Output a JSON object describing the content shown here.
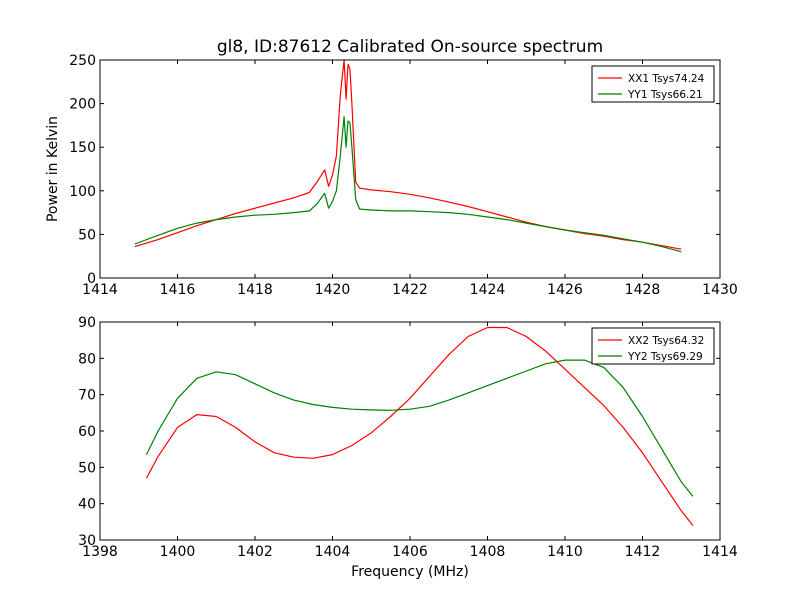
{
  "chart_data": [
    {
      "type": "line",
      "title": "gl8, ID:87612 Calibrated On-source spectrum",
      "xlabel": "",
      "ylabel": "Power in Kelvin",
      "xlim": [
        1414,
        1430
      ],
      "ylim": [
        0,
        250
      ],
      "xticks": [
        "1414",
        "1416",
        "1418",
        "1420",
        "1422",
        "1424",
        "1426",
        "1428",
        "1430"
      ],
      "yticks": [
        "0",
        "50",
        "100",
        "150",
        "200",
        "250"
      ],
      "legend": "top-right",
      "grid": false,
      "series": [
        {
          "name": "XX1 Tsys74.24",
          "color": "#ff0000",
          "x": [
            1414.9,
            1415.5,
            1416.0,
            1416.5,
            1417.0,
            1417.5,
            1418.0,
            1418.5,
            1419.0,
            1419.4,
            1419.6,
            1419.8,
            1419.9,
            1420.0,
            1420.1,
            1420.2,
            1420.3,
            1420.35,
            1420.4,
            1420.45,
            1420.5,
            1420.6,
            1420.7,
            1421.0,
            1421.5,
            1422.0,
            1422.5,
            1423.0,
            1423.5,
            1424.0,
            1424.5,
            1425.0,
            1425.5,
            1426.0,
            1426.5,
            1427.0,
            1427.5,
            1428.0,
            1428.5,
            1429.0
          ],
          "y": [
            36,
            44,
            52,
            60,
            67,
            74,
            80,
            86,
            92,
            98,
            110,
            124,
            105,
            118,
            140,
            210,
            250,
            205,
            245,
            240,
            200,
            110,
            103,
            101,
            99,
            96,
            92,
            87,
            82,
            76,
            70,
            64,
            59,
            55,
            51,
            48,
            44,
            41,
            37,
            33
          ]
        },
        {
          "name": "YY1 Tsys66.21",
          "color": "#008000",
          "x": [
            1414.9,
            1415.5,
            1416.0,
            1416.5,
            1417.0,
            1417.5,
            1418.0,
            1418.5,
            1419.0,
            1419.4,
            1419.6,
            1419.8,
            1419.9,
            1420.0,
            1420.1,
            1420.2,
            1420.3,
            1420.35,
            1420.4,
            1420.45,
            1420.5,
            1420.6,
            1420.7,
            1421.0,
            1421.5,
            1422.0,
            1422.5,
            1423.0,
            1423.5,
            1424.0,
            1424.5,
            1425.0,
            1425.5,
            1426.0,
            1426.5,
            1427.0,
            1427.5,
            1428.0,
            1428.5,
            1429.0
          ],
          "y": [
            39,
            49,
            57,
            63,
            67,
            70,
            72,
            73,
            75,
            77,
            85,
            97,
            80,
            88,
            100,
            140,
            185,
            150,
            180,
            178,
            150,
            90,
            79,
            78,
            77,
            77,
            76,
            75,
            73,
            70,
            67,
            63,
            59,
            55,
            52,
            49,
            45,
            41,
            36,
            30
          ]
        }
      ]
    },
    {
      "type": "line",
      "title": "",
      "xlabel": "Frequency (MHz)",
      "ylabel": "",
      "xlim": [
        1398,
        1414
      ],
      "ylim": [
        30,
        90
      ],
      "xticks": [
        "1398",
        "1400",
        "1402",
        "1404",
        "1406",
        "1408",
        "1410",
        "1412",
        "1414"
      ],
      "yticks": [
        "30",
        "40",
        "50",
        "60",
        "70",
        "80",
        "90"
      ],
      "legend": "top-right",
      "grid": false,
      "series": [
        {
          "name": "XX2 Tsys64.32",
          "color": "#ff0000",
          "x": [
            1399.2,
            1399.5,
            1400.0,
            1400.5,
            1401.0,
            1401.5,
            1402.0,
            1402.5,
            1403.0,
            1403.5,
            1404.0,
            1404.5,
            1405.0,
            1405.5,
            1406.0,
            1406.5,
            1407.0,
            1407.5,
            1408.0,
            1408.5,
            1409.0,
            1409.5,
            1410.0,
            1410.5,
            1411.0,
            1411.5,
            1412.0,
            1412.5,
            1413.0,
            1413.3
          ],
          "y": [
            47,
            53,
            61,
            64.5,
            64,
            61,
            57,
            54,
            52.8,
            52.5,
            53.5,
            56,
            59.5,
            64,
            69,
            75,
            81,
            86,
            88.5,
            88.5,
            86,
            82,
            77,
            72,
            67,
            61,
            54,
            46,
            38,
            34
          ]
        },
        {
          "name": "YY2 Tsys69.29",
          "color": "#008000",
          "x": [
            1399.2,
            1399.5,
            1400.0,
            1400.5,
            1401.0,
            1401.5,
            1402.0,
            1402.5,
            1403.0,
            1403.5,
            1404.0,
            1404.5,
            1405.0,
            1405.5,
            1406.0,
            1406.5,
            1407.0,
            1407.5,
            1408.0,
            1408.5,
            1409.0,
            1409.5,
            1410.0,
            1410.5,
            1411.0,
            1411.5,
            1412.0,
            1412.5,
            1413.0,
            1413.3
          ],
          "y": [
            53.5,
            60,
            69,
            74.5,
            76.3,
            75.5,
            73,
            70.5,
            68.5,
            67.3,
            66.5,
            66,
            65.8,
            65.7,
            66,
            66.8,
            68.5,
            70.5,
            72.5,
            74.5,
            76.5,
            78.5,
            79.5,
            79.5,
            77.5,
            72,
            64,
            55,
            46,
            42
          ]
        }
      ]
    }
  ]
}
